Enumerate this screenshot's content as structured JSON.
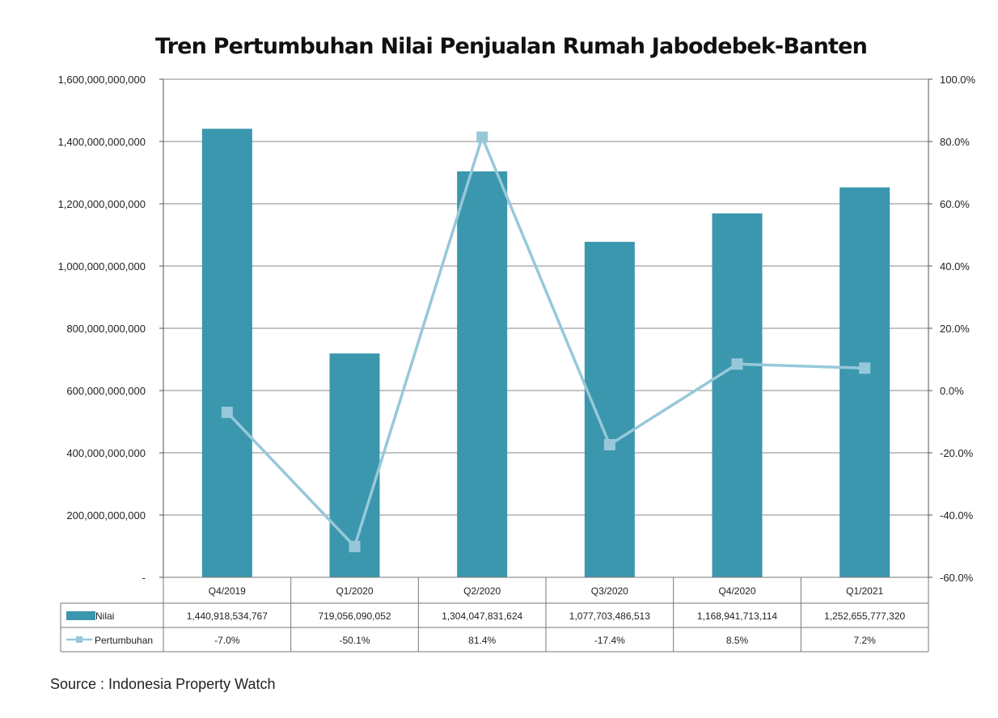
{
  "chart_data": {
    "type": "bar",
    "title": "Tren Pertumbuhan Nilai Penjualan Rumah Jabodebek-Banten",
    "categories": [
      "Q4/2019",
      "Q1/2020",
      "Q2/2020",
      "Q3/2020",
      "Q4/2020",
      "Q1/2021"
    ],
    "series": [
      {
        "name": "Nilai",
        "type": "bar",
        "axis": "left",
        "color": "#3b97ad",
        "values": [
          1440918534767,
          719056090052,
          1304047831624,
          1077703486513,
          1168941713114,
          1252655777320
        ],
        "value_labels": [
          "1,440,918,534,767",
          "719,056,090,052",
          "1,304,047,831,624",
          "1,077,703,486,513",
          "1,168,941,713,114",
          "1,252,655,777,320"
        ]
      },
      {
        "name": "Pertumbuhan",
        "type": "line",
        "axis": "right",
        "color": "#97c8da",
        "values": [
          -7.0,
          -50.1,
          81.4,
          -17.4,
          8.5,
          7.2
        ],
        "value_labels": [
          "-7.0%",
          "-50.1%",
          "81.4%",
          "-17.4%",
          "8.5%",
          "7.2%"
        ]
      }
    ],
    "y_left": {
      "ylim": [
        0,
        1600000000000
      ],
      "ticks": [
        0,
        200000000000,
        400000000000,
        600000000000,
        800000000000,
        1000000000000,
        1200000000000,
        1400000000000,
        1600000000000
      ],
      "tick_labels": [
        "-",
        "200,000,000,000",
        "400,000,000,000",
        "600,000,000,000",
        "800,000,000,000",
        "1,000,000,000,000",
        "1,200,000,000,000",
        "1,400,000,000,000",
        "1,600,000,000,000"
      ]
    },
    "y_right": {
      "ylim": [
        -60,
        100
      ],
      "ticks": [
        -60,
        -40,
        -20,
        0,
        20,
        40,
        60,
        80,
        100
      ],
      "tick_labels": [
        "-60.0%",
        "-40.0%",
        "-20.0%",
        "0.0%",
        "20.0%",
        "40.0%",
        "60.0%",
        "80.0%",
        "100.0%"
      ]
    },
    "grid": true,
    "data_table": true
  },
  "source": "Source : Indonesia Property Watch"
}
